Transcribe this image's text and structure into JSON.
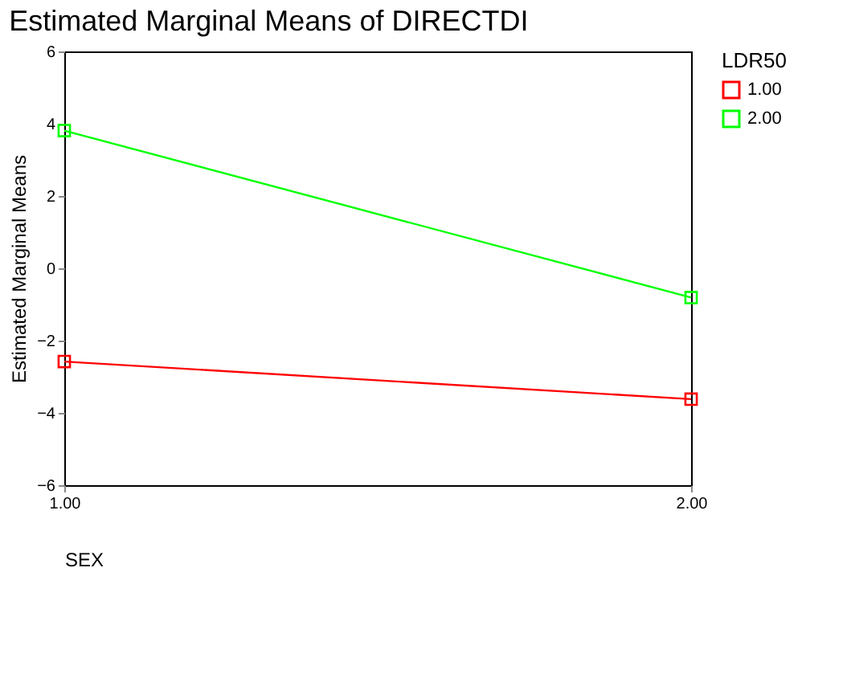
{
  "chart_data": {
    "type": "line",
    "title": "Estimated Marginal Means of DIRECTDI",
    "xlabel": "SEX",
    "ylabel": "Estimated Marginal Means",
    "legend_title": "LDR50",
    "x": [
      1,
      2
    ],
    "series": [
      {
        "name": "1.00",
        "color": "#ff0000",
        "values": [
          -2.58,
          -3.62
        ]
      },
      {
        "name": "2.00",
        "color": "#00ff00",
        "values": [
          3.81,
          -0.81
        ]
      }
    ],
    "xlim": [
      1,
      2
    ],
    "xticks": [
      {
        "value": 1,
        "label": "1.00"
      },
      {
        "value": 2,
        "label": "2.00"
      }
    ],
    "ylim": [
      -6,
      6
    ],
    "yticks": [
      -6,
      -4,
      -2,
      0,
      2,
      4,
      6
    ],
    "grid": false,
    "legend": "right",
    "marker": "square",
    "line_style": "solid"
  }
}
